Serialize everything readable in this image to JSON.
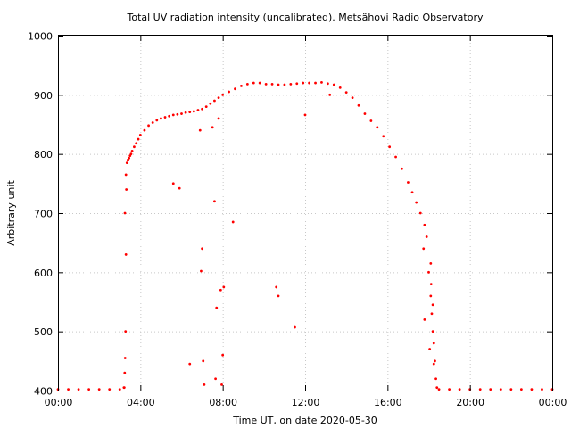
{
  "chart_data": {
    "type": "scatter",
    "title": "Total UV radiation intensity (uncalibrated). Metsähovi Radio Observatory",
    "xlabel": "Time UT, on date 2020-05-30",
    "ylabel": "Arbitrary unit",
    "xlim": [
      0,
      24
    ],
    "ylim": [
      400,
      1000
    ],
    "x_ticks": [
      {
        "value": 0,
        "label": "00:00"
      },
      {
        "value": 4,
        "label": "04:00"
      },
      {
        "value": 8,
        "label": "08:00"
      },
      {
        "value": 12,
        "label": "12:00"
      },
      {
        "value": 16,
        "label": "16:00"
      },
      {
        "value": 20,
        "label": "20:00"
      },
      {
        "value": 24,
        "label": "00:00"
      }
    ],
    "y_ticks": [
      {
        "value": 400,
        "label": "400"
      },
      {
        "value": 500,
        "label": "500"
      },
      {
        "value": 600,
        "label": "600"
      },
      {
        "value": 700,
        "label": "700"
      },
      {
        "value": 800,
        "label": "800"
      },
      {
        "value": 900,
        "label": "900"
      },
      {
        "value": 1000,
        "label": "1000"
      }
    ],
    "grid": true,
    "series_color": "#ff0000",
    "series": [
      {
        "name": "",
        "x": [
          0.0,
          0.5,
          1.0,
          1.5,
          2.0,
          2.5,
          3.0,
          3.2,
          3.25,
          3.3,
          3.35,
          3.4,
          3.45,
          3.5,
          3.55,
          3.6,
          3.7,
          3.8,
          3.9,
          4.0,
          4.2,
          4.4,
          4.6,
          4.8,
          5.0,
          5.2,
          5.4,
          5.6,
          5.8,
          6.0,
          6.2,
          6.4,
          6.6,
          6.8,
          7.0,
          7.2,
          7.4,
          7.6,
          7.8,
          8.0,
          8.3,
          8.6,
          8.9,
          9.2,
          9.5,
          9.8,
          10.1,
          10.4,
          10.7,
          11.0,
          11.3,
          11.6,
          11.9,
          12.2,
          12.5,
          12.8,
          13.1,
          13.4,
          13.7,
          14.0,
          14.3,
          14.6,
          14.9,
          15.2,
          15.5,
          15.8,
          16.1,
          16.4,
          16.7,
          17.0,
          17.2,
          17.4,
          17.6,
          17.8,
          17.9,
          18.0,
          18.1,
          18.15,
          18.2,
          18.25,
          18.3,
          18.35,
          18.4,
          18.5,
          19.0,
          19.5,
          20.0,
          20.5,
          21.0,
          21.5,
          22.0,
          22.5,
          23.0,
          23.5,
          24.0,
          3.22,
          3.24,
          3.26,
          3.28,
          3.3,
          3.32,
          5.6,
          5.9,
          6.4,
          6.95,
          7.0,
          7.05,
          7.1,
          7.6,
          7.65,
          7.7,
          7.9,
          7.95,
          8.0,
          8.05,
          8.5,
          10.6,
          10.7,
          11.5,
          12.0,
          13.2,
          6.9,
          7.5,
          7.8,
          17.75,
          17.8,
          18.05,
          18.1,
          18.12,
          18.2,
          18.25
        ],
        "y": [
          402,
          402,
          402,
          402,
          402,
          402,
          402,
          405,
          700,
          765,
          785,
          790,
          793,
          797,
          800,
          805,
          812,
          818,
          825,
          832,
          840,
          848,
          853,
          857,
          860,
          862,
          864,
          866,
          867,
          868,
          870,
          871,
          872,
          874,
          876,
          880,
          885,
          890,
          895,
          900,
          905,
          910,
          915,
          918,
          920,
          920,
          918,
          918,
          917,
          917,
          918,
          919,
          920,
          920,
          920,
          921,
          919,
          917,
          912,
          904,
          895,
          882,
          868,
          856,
          845,
          830,
          812,
          795,
          775,
          752,
          735,
          718,
          700,
          680,
          660,
          600,
          560,
          530,
          500,
          480,
          450,
          420,
          405,
          402,
          402,
          402,
          402,
          402,
          402,
          402,
          402,
          402,
          402,
          402,
          402,
          405,
          430,
          455,
          500,
          630,
          740,
          750,
          742,
          445,
          602,
          640,
          450,
          410,
          720,
          420,
          540,
          570,
          410,
          460,
          575,
          685,
          575,
          560,
          507,
          866,
          900,
          840,
          845,
          860,
          640,
          520,
          470,
          615,
          580,
          545,
          445
        ]
      }
    ]
  }
}
